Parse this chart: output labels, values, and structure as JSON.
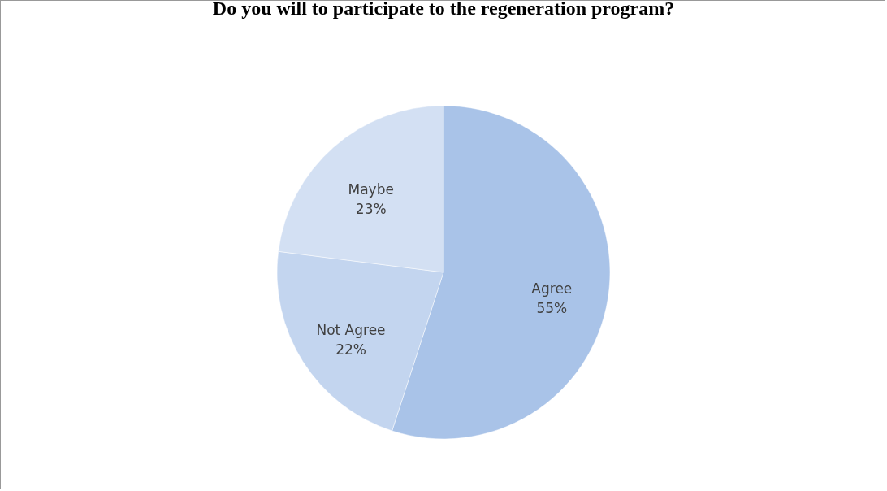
{
  "chart_data": {
    "type": "pie",
    "title": "Do you will to participate to the regeneration program?",
    "categories": [
      "Agree",
      "Not Agree",
      "Maybe"
    ],
    "values": [
      55,
      22,
      23
    ],
    "value_labels": [
      "55%",
      "22%",
      "23%"
    ],
    "colors": [
      "#a9c3e8",
      "#c3d5ef",
      "#d3e0f3"
    ],
    "legend": false
  }
}
